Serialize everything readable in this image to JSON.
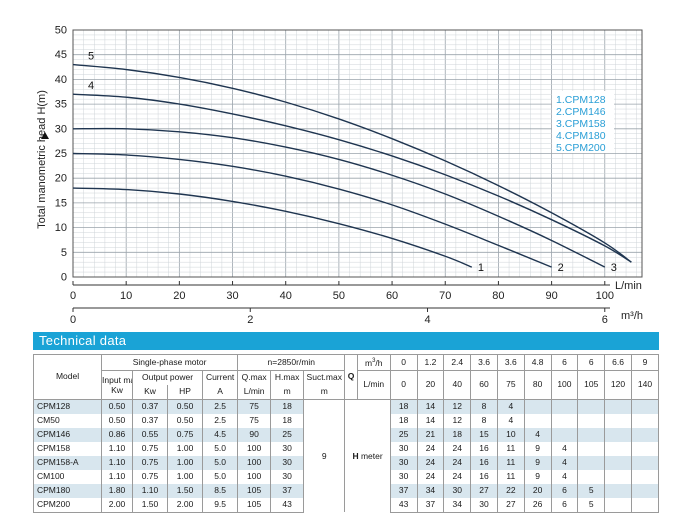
{
  "chart_data": {
    "type": "line",
    "ylabel": "Total manometric head H(m)",
    "xlabel": "L/min",
    "x2label": "m³/h",
    "xlim": [
      0,
      107
    ],
    "ylim": [
      0,
      50
    ],
    "xticks": [
      0,
      10,
      20,
      30,
      40,
      50,
      60,
      70,
      80,
      90,
      100
    ],
    "yticks": [
      0,
      5,
      10,
      15,
      20,
      25,
      30,
      35,
      40,
      45,
      50
    ],
    "x2ticks": [
      0,
      2,
      4,
      6
    ],
    "grid": true,
    "legend_position": "right",
    "legend_color": "#2a9fd6",
    "line_color": "#1f3550",
    "series": [
      {
        "name": "1.CPM128",
        "label": "1",
        "x": [
          0,
          10,
          20,
          30,
          40,
          50,
          60,
          70,
          75
        ],
        "y": [
          18,
          17.7,
          16.8,
          15.3,
          13.3,
          10.8,
          7.8,
          4.2,
          2
        ]
      },
      {
        "name": "2.CPM146",
        "label": "2",
        "x": [
          0,
          10,
          20,
          30,
          40,
          50,
          60,
          70,
          80,
          90
        ],
        "y": [
          25,
          24.7,
          23.8,
          22.4,
          20.4,
          17.8,
          14.6,
          10.7,
          6.4,
          2
        ]
      },
      {
        "name": "3.CPM158",
        "label": "3",
        "x": [
          0,
          10,
          20,
          30,
          40,
          50,
          60,
          70,
          80,
          90,
          100
        ],
        "y": [
          30,
          30,
          29.4,
          28.2,
          26.3,
          23.8,
          20.6,
          16.8,
          12.3,
          7.4,
          2
        ]
      },
      {
        "name": "4.CPM180",
        "label": "4",
        "x": [
          0,
          10,
          20,
          30,
          40,
          50,
          60,
          70,
          80,
          90,
          100,
          105
        ],
        "y": [
          37,
          36.4,
          35,
          33,
          30.6,
          27.8,
          24.5,
          20.7,
          16.4,
          11.6,
          6.3,
          3
        ]
      },
      {
        "name": "5.CPM200",
        "label": "5",
        "x": [
          0,
          10,
          20,
          30,
          40,
          50,
          60,
          70,
          80,
          90,
          100,
          105
        ],
        "y": [
          43,
          42,
          40.4,
          38.2,
          35.4,
          32,
          28,
          23.5,
          18.5,
          13,
          6.9,
          3
        ]
      }
    ]
  },
  "section_title": "Technical data",
  "table": {
    "model": "Model",
    "single_phase_motor": "Single-phase motor",
    "speed": "n=2850r/min",
    "input_max": "Input max",
    "output_power": "Output power",
    "current": "Current",
    "qmax": "Q.max",
    "hmax": "H.max",
    "suctmax": "Suct.max",
    "q": "Q",
    "unit_kw": "Kw",
    "unit_hp": "HP",
    "unit_a": "A",
    "unit_lmin": "L/min",
    "unit_m": "m",
    "unit_m3h": "m³/h",
    "h_meter_h": "H",
    "h_meter_rest": " meter",
    "suction_value": "9",
    "q_m3h": [
      "0",
      "1.2",
      "2.4",
      "3.6",
      "3.6",
      "4.8",
      "6",
      "6",
      "6.6",
      "9"
    ],
    "q_lmin": [
      "0",
      "20",
      "40",
      "60",
      "75",
      "80",
      "100",
      "105",
      "120",
      "140"
    ],
    "rows": [
      {
        "model": "CPM128",
        "input": "0.50",
        "kw": "0.37",
        "hp": "0.50",
        "a": "2.5",
        "qmax": "75",
        "hmax": "18",
        "h": [
          "18",
          "14",
          "12",
          "8",
          "4",
          "",
          "",
          "",
          "",
          ""
        ]
      },
      {
        "model": "CM50",
        "input": "0.50",
        "kw": "0.37",
        "hp": "0.50",
        "a": "2.5",
        "qmax": "75",
        "hmax": "18",
        "h": [
          "18",
          "14",
          "12",
          "8",
          "4",
          "",
          "",
          "",
          "",
          ""
        ]
      },
      {
        "model": "CPM146",
        "input": "0.86",
        "kw": "0.55",
        "hp": "0.75",
        "a": "4.5",
        "qmax": "90",
        "hmax": "25",
        "h": [
          "25",
          "21",
          "18",
          "15",
          "10",
          "4",
          "",
          "",
          "",
          ""
        ]
      },
      {
        "model": "CPM158",
        "input": "1.10",
        "kw": "0.75",
        "hp": "1.00",
        "a": "5.0",
        "qmax": "100",
        "hmax": "30",
        "h": [
          "30",
          "24",
          "24",
          "16",
          "11",
          "9",
          "4",
          "",
          "",
          ""
        ]
      },
      {
        "model": "CPM158-A",
        "input": "1.10",
        "kw": "0.75",
        "hp": "1.00",
        "a": "5.0",
        "qmax": "100",
        "hmax": "30",
        "h": [
          "30",
          "24",
          "24",
          "16",
          "11",
          "9",
          "4",
          "",
          "",
          ""
        ]
      },
      {
        "model": "CM100",
        "input": "1.10",
        "kw": "0.75",
        "hp": "1.00",
        "a": "5.0",
        "qmax": "100",
        "hmax": "30",
        "h": [
          "30",
          "24",
          "24",
          "16",
          "11",
          "9",
          "4",
          "",
          "",
          ""
        ]
      },
      {
        "model": "CPM180",
        "input": "1.80",
        "kw": "1.10",
        "hp": "1.50",
        "a": "8.5",
        "qmax": "105",
        "hmax": "37",
        "h": [
          "37",
          "34",
          "30",
          "27",
          "22",
          "20",
          "6",
          "5",
          "",
          ""
        ]
      },
      {
        "model": "CPM200",
        "input": "2.00",
        "kw": "1.50",
        "hp": "2.00",
        "a": "9.5",
        "qmax": "105",
        "hmax": "43",
        "h": [
          "43",
          "37",
          "34",
          "30",
          "27",
          "26",
          "6",
          "5",
          "",
          ""
        ]
      }
    ]
  }
}
